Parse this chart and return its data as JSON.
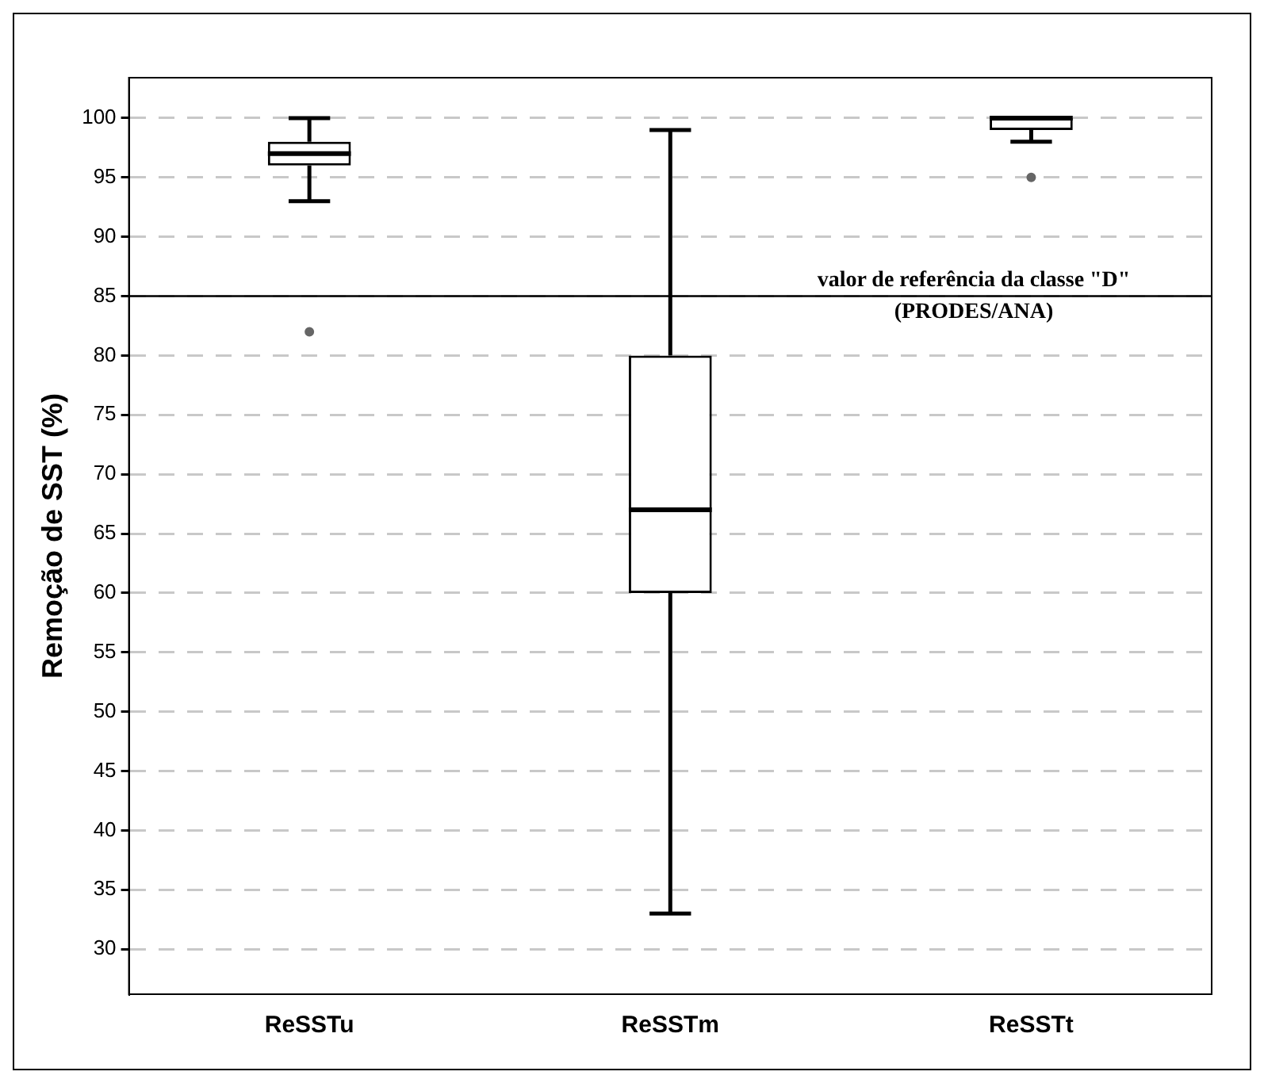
{
  "chart_data": {
    "type": "box",
    "ylabel": "Remoção de SST (%)",
    "categories": [
      "ReSSTu",
      "ReSSTm",
      "ReSSTt"
    ],
    "boxes": [
      {
        "low": 93,
        "q1": 96,
        "median": 97,
        "q3": 98,
        "high": 100,
        "outliers": [
          82
        ]
      },
      {
        "low": 33,
        "q1": 60,
        "median": 67,
        "q3": 80,
        "high": 99
      },
      {
        "low": 98,
        "q1": 99,
        "median": 100,
        "q3": 100,
        "high": 100,
        "outliers": [
          95
        ]
      }
    ],
    "ylim": [
      26.2,
      103.4
    ],
    "yticks": [
      30,
      35,
      40,
      45,
      50,
      55,
      60,
      65,
      70,
      75,
      80,
      85,
      90,
      95,
      100
    ],
    "ref_lines": [
      {
        "axis": "y",
        "value": 85,
        "label": "valor de referência da classe \"D\"\n(PRODES/ANA)"
      }
    ],
    "grid": "y",
    "legend": false
  }
}
